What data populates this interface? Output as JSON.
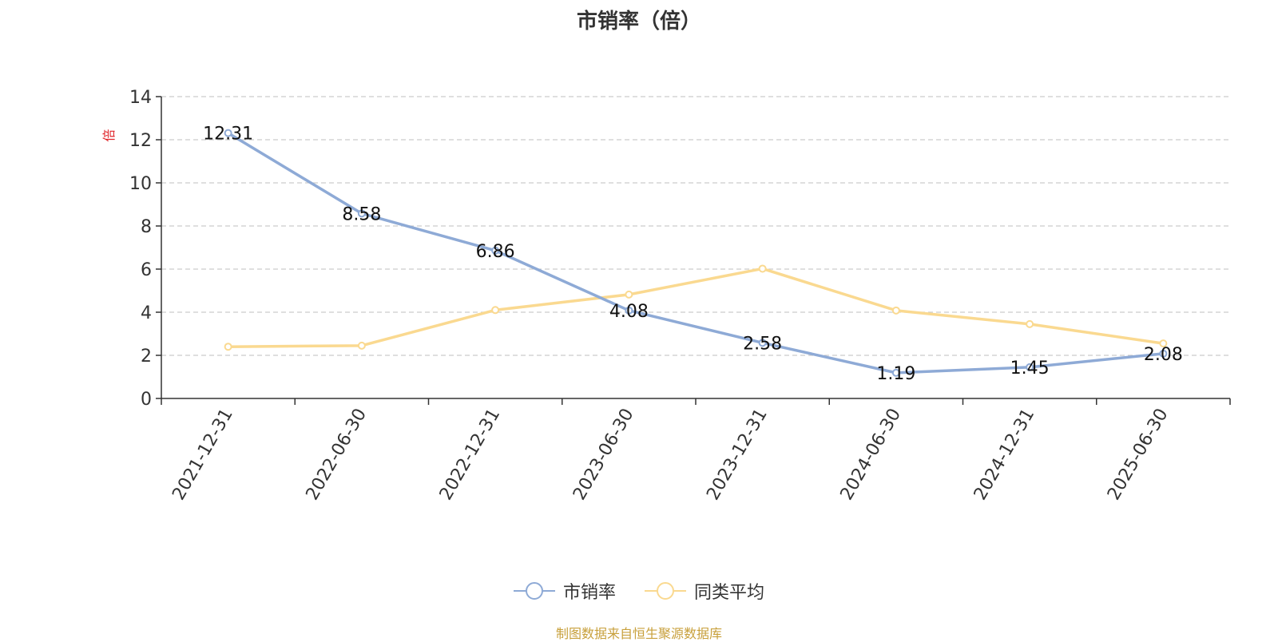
{
  "chart_data": {
    "type": "line",
    "title": "市销率（倍）",
    "ylabel": "倍",
    "ylim": [
      0,
      14
    ],
    "yticks": [
      0,
      2,
      4,
      6,
      8,
      10,
      12,
      14
    ],
    "categories": [
      "2021-12-31",
      "2022-06-30",
      "2022-12-31",
      "2023-06-30",
      "2023-12-31",
      "2024-06-30",
      "2024-12-31",
      "2025-06-30"
    ],
    "grid": true,
    "legend_position": "bottom",
    "series": [
      {
        "name": "市销率",
        "color": "#8eaad6",
        "values": [
          12.31,
          8.58,
          6.86,
          4.08,
          2.58,
          1.19,
          1.45,
          2.08
        ],
        "show_labels": true
      },
      {
        "name": "同类平均",
        "color": "#fad990",
        "values": [
          2.4,
          2.45,
          4.1,
          4.82,
          6.02,
          4.08,
          3.45,
          2.55
        ],
        "show_labels": false
      }
    ]
  },
  "footer": {
    "source": "制图数据来自恒生聚源数据库"
  }
}
